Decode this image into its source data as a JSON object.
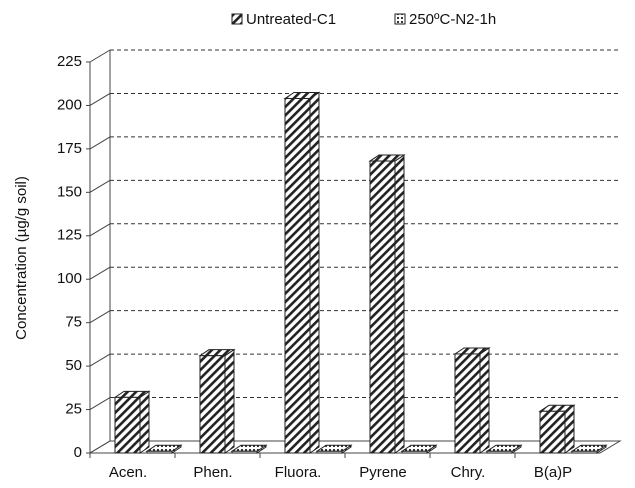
{
  "chart_data": {
    "type": "bar3d",
    "y_label": "Concentration (µg/g soil)",
    "categories": [
      "Acen.",
      "Phen.",
      "Fluora.",
      "Pyrene",
      "Chry.",
      "B(a)P"
    ],
    "series": [
      {
        "name": "Untreated-C1",
        "color": "#222222",
        "values": [
          32,
          56,
          204,
          168,
          57,
          24
        ]
      },
      {
        "name": "250ºC-N2-1h",
        "color": "#222222",
        "values": [
          1,
          1,
          1,
          1,
          1,
          1
        ]
      }
    ],
    "ylim": [
      0,
      225
    ],
    "yticks": [
      0,
      25,
      50,
      75,
      100,
      125,
      150,
      175,
      200,
      225
    ],
    "grid": true
  }
}
